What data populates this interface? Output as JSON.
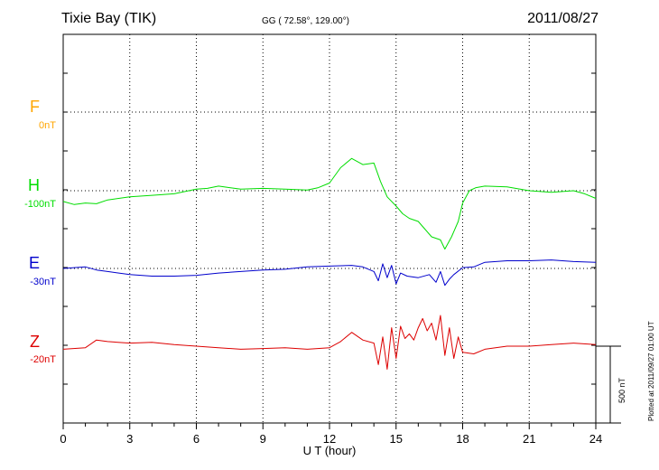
{
  "header": {
    "station": "Tixie Bay (TIK)",
    "coords": "GG ( 72.58°, 129.00°)",
    "date": "2011/08/27"
  },
  "plotted_note": "Plotted at 2011/09/27 01:00 UT",
  "scale_label": "500 nT",
  "colors": {
    "F": "#ffa500",
    "H": "#00dd00",
    "E": "#0000cc",
    "Z": "#dd0000"
  },
  "chart_data": {
    "type": "line",
    "title": "Tixie Bay (TIK)",
    "xlabel": "U T (hour)",
    "xlim": [
      0,
      24
    ],
    "x_ticks": [
      0,
      3,
      6,
      9,
      12,
      15,
      18,
      21,
      24
    ],
    "x_tick_labels": [
      "0",
      "3",
      "6",
      "9",
      "12",
      "15",
      "18",
      "21",
      "24"
    ],
    "scale_bar_nT": 500,
    "series": [
      {
        "name": "F",
        "baseline_label": "0nT",
        "x": [],
        "values": []
      },
      {
        "name": "H",
        "baseline_label": "-100nT",
        "x": [
          0,
          0.5,
          1,
          1.5,
          2,
          3,
          4,
          5,
          6,
          6.5,
          7,
          7.5,
          8,
          9,
          10,
          11,
          11.5,
          12,
          12.5,
          13,
          13.5,
          14,
          14.3,
          14.6,
          15,
          15.3,
          15.6,
          16,
          16.3,
          16.6,
          17,
          17.2,
          17.5,
          17.8,
          18,
          18.3,
          18.6,
          19,
          20,
          21,
          22,
          23,
          23.5,
          24
        ],
        "values": [
          -70,
          -90,
          -80,
          -85,
          -60,
          -40,
          -30,
          -20,
          10,
          15,
          30,
          20,
          10,
          15,
          10,
          5,
          20,
          50,
          150,
          210,
          170,
          180,
          60,
          -40,
          -100,
          -150,
          -180,
          -200,
          -250,
          -300,
          -320,
          -380,
          -300,
          -200,
          -80,
          0,
          20,
          30,
          25,
          0,
          -10,
          0,
          -20,
          -50
        ]
      },
      {
        "name": "E",
        "baseline_label": "-30nT",
        "x": [
          0,
          1,
          1.5,
          2,
          3,
          4,
          5,
          6,
          7,
          8,
          9,
          10,
          11,
          12,
          13,
          13.5,
          14,
          14.2,
          14.4,
          14.6,
          14.8,
          15,
          15.2,
          15.5,
          16,
          16.5,
          16.8,
          17,
          17.2,
          17.4,
          17.6,
          18,
          18.5,
          19,
          20,
          21,
          22,
          23,
          24
        ],
        "values": [
          0,
          10,
          -10,
          -20,
          -40,
          -50,
          -50,
          -45,
          -30,
          -20,
          -10,
          -5,
          10,
          15,
          20,
          10,
          -20,
          -80,
          30,
          -60,
          20,
          -100,
          -30,
          -50,
          -60,
          -40,
          -90,
          -20,
          -110,
          -70,
          -40,
          5,
          10,
          40,
          50,
          50,
          55,
          45,
          40
        ]
      },
      {
        "name": "Z",
        "baseline_label": "-20nT",
        "x": [
          0,
          1,
          1.5,
          2,
          3,
          4,
          5,
          6,
          7,
          8,
          9,
          10,
          11,
          12,
          12.5,
          13,
          13.5,
          14,
          14.2,
          14.4,
          14.6,
          14.8,
          15,
          15.2,
          15.4,
          15.6,
          15.8,
          16,
          16.2,
          16.4,
          16.6,
          16.8,
          17,
          17.2,
          17.4,
          17.6,
          17.8,
          18,
          18.5,
          19,
          20,
          21,
          22,
          23,
          24
        ],
        "values": [
          -20,
          -10,
          40,
          30,
          20,
          25,
          10,
          0,
          -10,
          -20,
          -15,
          -10,
          -20,
          -10,
          30,
          90,
          40,
          20,
          -120,
          60,
          -150,
          120,
          -80,
          130,
          50,
          80,
          40,
          120,
          180,
          100,
          150,
          40,
          200,
          -60,
          120,
          -80,
          60,
          -40,
          -50,
          -20,
          0,
          0,
          10,
          20,
          10
        ]
      }
    ]
  }
}
